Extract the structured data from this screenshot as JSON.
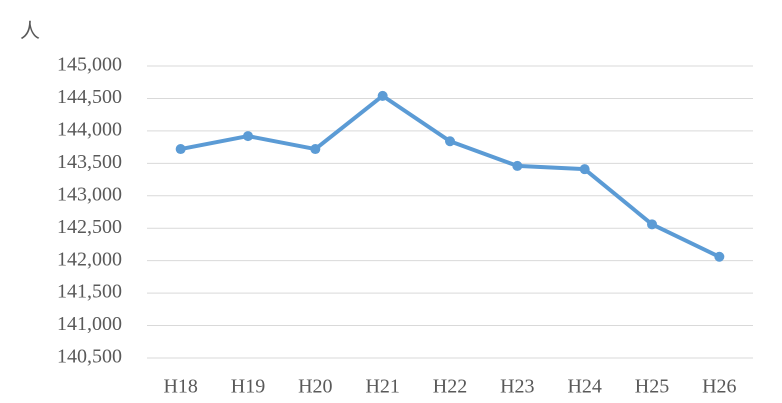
{
  "chart_data": {
    "type": "line",
    "y_label": "人",
    "categories": [
      "H18",
      "H19",
      "H20",
      "H21",
      "H22",
      "H23",
      "H24",
      "H25",
      "H26"
    ],
    "series": [
      {
        "color": "#5b9bd5",
        "values": [
          143720,
          143920,
          143720,
          144540,
          143840,
          143460,
          143410,
          142560,
          142060
        ]
      }
    ],
    "ylim": [
      140500,
      145000
    ],
    "yticks": [
      {
        "value": 140500,
        "label": "140,500"
      },
      {
        "value": 141000,
        "label": "141,000"
      },
      {
        "value": 141500,
        "label": "141,500"
      },
      {
        "value": 142000,
        "label": "142,000"
      },
      {
        "value": 142500,
        "label": "142,500"
      },
      {
        "value": 143000,
        "label": "143,000"
      },
      {
        "value": 143500,
        "label": "143,500"
      },
      {
        "value": 144000,
        "label": "144,000"
      },
      {
        "value": 144500,
        "label": "144,500"
      },
      {
        "value": 145000,
        "label": "145,000"
      }
    ],
    "grid": true
  }
}
